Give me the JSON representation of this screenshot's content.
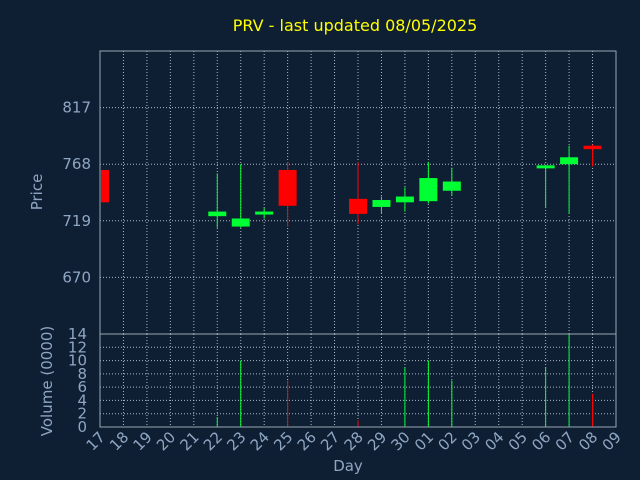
{
  "chart_data": {
    "type": "candlestick",
    "title": "PRV - last updated 08/05/2025",
    "colors": {
      "background": "#0f1f33",
      "title": "#ffff00",
      "text": "#8fa6c2",
      "up": "#00ff33",
      "down": "#ff0000",
      "grid": "#c0c8d4"
    },
    "x": {
      "label": "Day",
      "ticks": [
        "17",
        "18",
        "19",
        "20",
        "21",
        "22",
        "23",
        "24",
        "25",
        "26",
        "27",
        "28",
        "29",
        "30",
        "01",
        "02",
        "03",
        "04",
        "05",
        "06",
        "07",
        "08",
        "09"
      ]
    },
    "price": {
      "label": "Price",
      "ylim": [
        621,
        866
      ],
      "ticks": [
        670,
        719,
        768,
        817
      ]
    },
    "volume": {
      "label": "Volume (0000)",
      "ylim": [
        0,
        14
      ],
      "ticks": [
        0,
        2,
        4,
        6,
        8,
        10,
        12,
        14
      ]
    },
    "candles": [
      {
        "x": 0,
        "open": 763,
        "close": 735,
        "high": 763,
        "low": 735,
        "volume": 0
      },
      {
        "x": 5,
        "open": 723,
        "close": 727,
        "high": 760,
        "low": 713,
        "volume": 1.5
      },
      {
        "x": 6,
        "open": 714,
        "close": 721,
        "high": 768,
        "low": 713,
        "volume": 10
      },
      {
        "x": 7,
        "open": 725,
        "close": 727,
        "high": 730,
        "low": 721,
        "volume": 0
      },
      {
        "x": 8,
        "open": 763,
        "close": 732,
        "high": 770,
        "low": 714,
        "volume": 7
      },
      {
        "x": 11,
        "open": 738,
        "close": 725,
        "high": 770,
        "low": 716,
        "volume": 1
      },
      {
        "x": 12,
        "open": 731,
        "close": 737,
        "high": 740,
        "low": 725,
        "volume": 0
      },
      {
        "x": 13,
        "open": 735,
        "close": 740,
        "high": 748,
        "low": 727,
        "volume": 9
      },
      {
        "x": 14,
        "open": 736,
        "close": 756,
        "high": 770,
        "low": 734,
        "volume": 10
      },
      {
        "x": 15,
        "open": 745,
        "close": 753,
        "high": 765,
        "low": 741,
        "volume": 7
      },
      {
        "x": 19,
        "open": 765,
        "close": 767,
        "high": 767,
        "low": 730,
        "volume": 9
      },
      {
        "x": 20,
        "open": 768,
        "close": 774,
        "high": 784,
        "low": 725,
        "volume": 14
      },
      {
        "x": 21,
        "open": 784,
        "close": 781,
        "high": 785,
        "low": 766,
        "volume": 5
      }
    ]
  }
}
